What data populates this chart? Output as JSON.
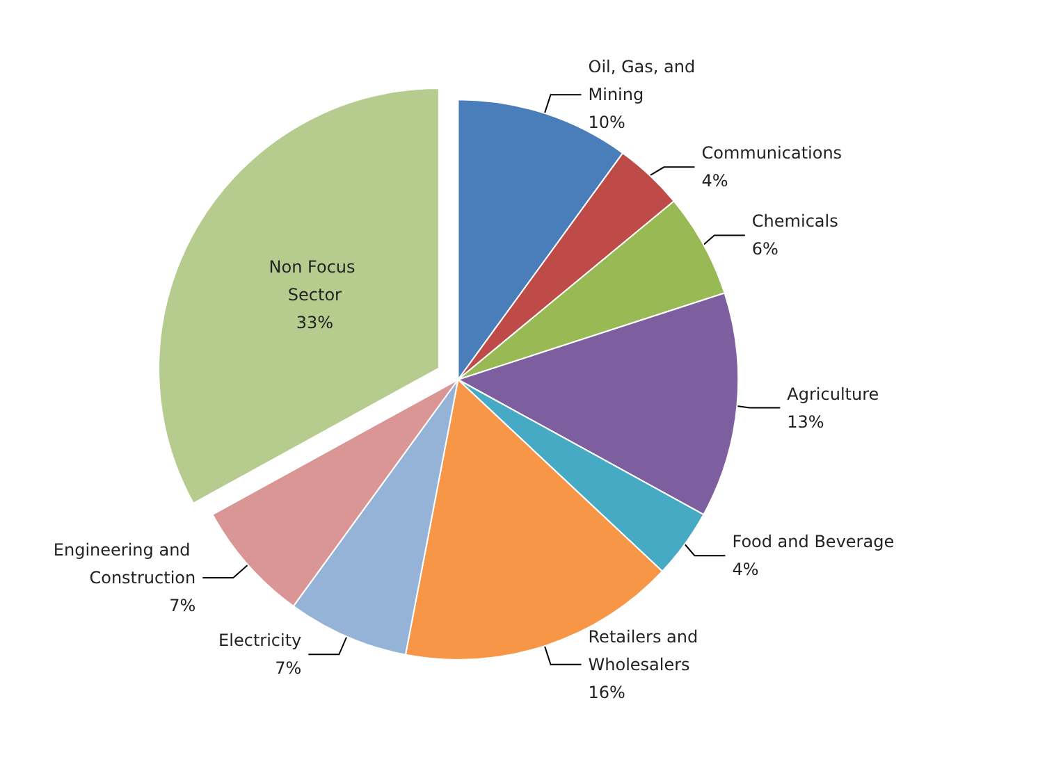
{
  "chart_data": {
    "type": "pie",
    "categories": [
      "Oil, Gas, and Mining",
      "Communications",
      "Chemicals",
      "Agriculture",
      "Food and Beverage",
      "Retailers and Wholesalers",
      "Electricity",
      "Engineering and Construction",
      "Non Focus Sector"
    ],
    "values": [
      10,
      4,
      6,
      13,
      4,
      16,
      7,
      7,
      33
    ],
    "value_labels": [
      "10%",
      "4%",
      "6%",
      "13%",
      "4%",
      "16%",
      "7%",
      "7%",
      "33%"
    ],
    "colors": [
      "#4a7ebb",
      "#be4b48",
      "#98b954",
      "#7d5fa0",
      "#46aac5",
      "#f79646",
      "#95b3d7",
      "#d99694",
      "#b5cc8e"
    ]
  }
}
